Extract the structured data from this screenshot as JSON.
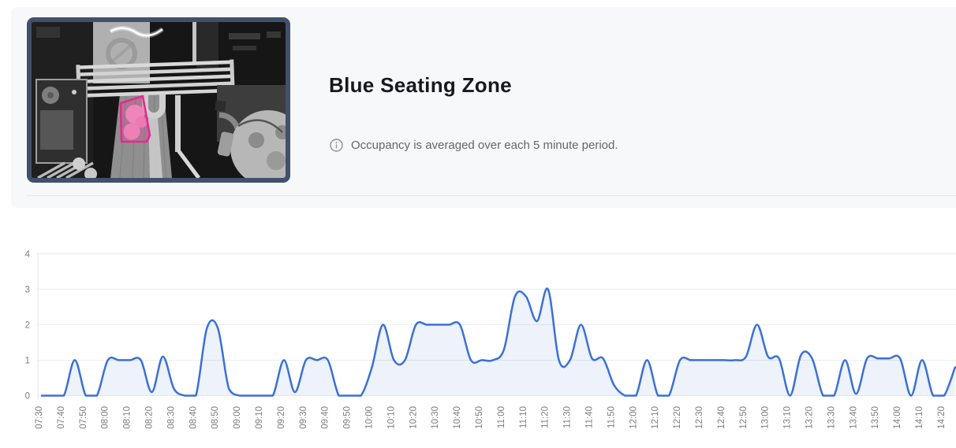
{
  "header": {
    "title": "Blue Seating Zone",
    "info_note": "Occupancy is averaged over each 5 minute period.",
    "info_icon": "info-circle-icon",
    "thumbnail": {
      "description": "overhead camera view with highlighted seating zone",
      "zone_color": "#e52a8e"
    }
  },
  "chart_data": {
    "type": "area",
    "title": "",
    "xlabel": "",
    "ylabel": "",
    "ylim": [
      0,
      4
    ],
    "y_ticks": [
      0,
      1,
      2,
      3,
      4
    ],
    "grid": "horizontal",
    "legend": "none",
    "line_color": "#3b70d7",
    "fill_color": "rgba(59,112,215,0.09)",
    "gridline_color": "#ececec",
    "x_tick_labels": [
      "07:30",
      "07:40",
      "07:50",
      "08:00",
      "08:10",
      "08:20",
      "08:30",
      "08:40",
      "08:50",
      "09:00",
      "09:10",
      "09:20",
      "09:30",
      "09:40",
      "09:50",
      "10:00",
      "10:10",
      "10:20",
      "10:30",
      "10:40",
      "10:50",
      "11:00",
      "11:10",
      "11:20",
      "11:30",
      "11:40",
      "11:50",
      "12:00",
      "12:10",
      "12:20",
      "12:30",
      "12:40",
      "12:50",
      "13:00",
      "13:10",
      "13:20",
      "13:30",
      "13:40",
      "13:50",
      "14:00",
      "14:10",
      "14:20"
    ],
    "series": [
      {
        "name": "Occupancy",
        "x": [
          "07:30",
          "07:35",
          "07:40",
          "07:45",
          "07:50",
          "07:55",
          "08:00",
          "08:05",
          "08:10",
          "08:15",
          "08:20",
          "08:25",
          "08:30",
          "08:35",
          "08:40",
          "08:45",
          "08:50",
          "08:55",
          "09:00",
          "09:05",
          "09:10",
          "09:15",
          "09:20",
          "09:25",
          "09:30",
          "09:35",
          "09:40",
          "09:45",
          "09:50",
          "09:55",
          "10:00",
          "10:05",
          "10:10",
          "10:15",
          "10:20",
          "10:25",
          "10:30",
          "10:35",
          "10:40",
          "10:45",
          "10:50",
          "10:55",
          "11:00",
          "11:05",
          "11:10",
          "11:15",
          "11:20",
          "11:25",
          "11:30",
          "11:35",
          "11:40",
          "11:45",
          "11:50",
          "11:55",
          "12:00",
          "12:05",
          "12:10",
          "12:15",
          "12:20",
          "12:25",
          "12:30",
          "12:35",
          "12:40",
          "12:45",
          "12:50",
          "12:55",
          "13:00",
          "13:05",
          "13:10",
          "13:15",
          "13:20",
          "13:25",
          "13:30",
          "13:35",
          "13:40",
          "13:45",
          "13:50",
          "13:55",
          "14:00",
          "14:05",
          "14:10",
          "14:15",
          "14:20",
          "14:25"
        ],
        "values": [
          0,
          0,
          0,
          1,
          0,
          0,
          1,
          1,
          1,
          1,
          0.1,
          1.1,
          0.2,
          0,
          0,
          1.9,
          1.9,
          0.2,
          0,
          0,
          0,
          0,
          1,
          0.1,
          1,
          1,
          1,
          0,
          0,
          0,
          0.8,
          2,
          1,
          1,
          2,
          2,
          2,
          2,
          2,
          1,
          1,
          1,
          1.3,
          2.8,
          2.8,
          2.1,
          3,
          1,
          1,
          2,
          1.05,
          1.05,
          0.3,
          0,
          0,
          1,
          0,
          0,
          1,
          1,
          1,
          1,
          1,
          1,
          1.1,
          2,
          1.1,
          1.05,
          0,
          1.15,
          1.05,
          0,
          0,
          1,
          0.05,
          1.05,
          1.05,
          1.05,
          1.05,
          0,
          1,
          0,
          0,
          0.8
        ]
      }
    ]
  }
}
